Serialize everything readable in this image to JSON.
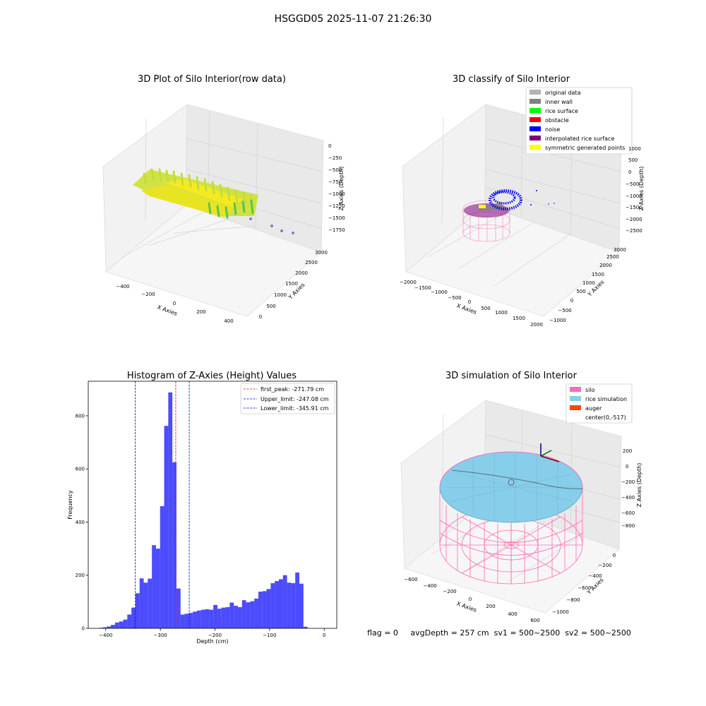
{
  "suptitle": "HSGGD05 2025-11-07 21:26:30",
  "status_line": "flag = 0     avgDepth = 257 cm  sv1 = 500~2500  sv2 = 500~2500",
  "chart_data": [
    {
      "id": "raw3d",
      "type": "scatter3d",
      "title": "3D Plot of Silo Interior(row data)",
      "xlabel": "X Axies",
      "ylabel": "Y Axies",
      "zlabel": "Z Axies (Depth)",
      "xticks": [
        "−400",
        "−200",
        "0",
        "200",
        "400"
      ],
      "yticks": [
        "0",
        "500",
        "1000",
        "1500",
        "2000",
        "2500",
        "3000"
      ],
      "zticks": [
        "0",
        "−250",
        "−500",
        "−750",
        "−1000",
        "−1250",
        "−1500",
        "−1750"
      ],
      "colors": {
        "high": "#f6e21c",
        "low": "#4ec24a",
        "outlier": "#7b7fc9"
      }
    },
    {
      "id": "classify3d",
      "type": "scatter3d",
      "title": "3D classify of Silo Interior",
      "xlabel": "X Axies",
      "ylabel": "Y Axies",
      "zlabel": "Z Axies (Depth)",
      "xticks": [
        "−2000",
        "−1500",
        "−1000",
        "−500",
        "0",
        "500",
        "1000",
        "1500",
        "2000"
      ],
      "yticks": [
        "−1000",
        "−500",
        "0",
        "500",
        "1000",
        "1500",
        "2000",
        "2500",
        "3000"
      ],
      "zticks": [
        "1000",
        "500",
        "0",
        "−500",
        "−1000",
        "−1500",
        "−2000",
        "−2500"
      ],
      "legend": [
        {
          "label": "original data",
          "color": "#b3b3b3"
        },
        {
          "label": "inner wall",
          "color": "#808080"
        },
        {
          "label": "rice surface",
          "color": "#00ff00"
        },
        {
          "label": "obstacle",
          "color": "#ff0000"
        },
        {
          "label": "noise",
          "color": "#0000ff"
        },
        {
          "label": "interpolated rice surface",
          "color": "#800080"
        },
        {
          "label": "symmetric generated points",
          "color": "#ffff00"
        }
      ],
      "legend_position": "top-right"
    },
    {
      "id": "hist",
      "type": "bar",
      "title": "Histogram of Z-Axies (Height) Values",
      "xlabel": "Depth (cm)",
      "ylabel": "Frequency",
      "xlim": [
        -432,
        23
      ],
      "ylim": [
        0,
        930
      ],
      "xticks": [
        -400,
        -300,
        -200,
        -100,
        0
      ],
      "yticks": [
        0,
        200,
        400,
        600,
        800
      ],
      "bin_start": -413,
      "bin_width": 7.5,
      "values": [
        2,
        4,
        7,
        13,
        22,
        26,
        33,
        52,
        78,
        132,
        188,
        172,
        187,
        313,
        300,
        460,
        762,
        888,
        625,
        150,
        52,
        55,
        58,
        63,
        67,
        70,
        72,
        70,
        88,
        74,
        78,
        80,
        97,
        85,
        80,
        106,
        98,
        102,
        112,
        138,
        140,
        148,
        170,
        178,
        185,
        200,
        172,
        170,
        210,
        168,
        6
      ],
      "bar_color": "#0000ff",
      "bar_opacity": 0.7,
      "lines": [
        {
          "label": "first_peak: -271.79 cm",
          "value": -271.79,
          "color": "#ff0000"
        },
        {
          "label": "Upper_limit: -247.08 cm",
          "value": -247.08,
          "color": "#0000ff"
        },
        {
          "label": "Lower_limit: -345.91 cm",
          "value": -345.91,
          "color": "#0000ff"
        }
      ],
      "legend_position": "top-right"
    },
    {
      "id": "sim3d",
      "type": "surface3d",
      "title": "3D simulation of Silo Interior",
      "xlabel": "X Axies",
      "ylabel": "Y Axies",
      "zlabel": "Z Axies (Depth)",
      "xticks": [
        "−600",
        "−400",
        "−200",
        "0",
        "200",
        "400",
        "600"
      ],
      "yticks": [
        "−1000",
        "−800",
        "−600",
        "−400",
        "−200",
        "0"
      ],
      "zticks": [
        "200",
        "0",
        "−200",
        "−400",
        "−600",
        "−800"
      ],
      "legend": [
        {
          "label": "silo",
          "color": "#ff69b4"
        },
        {
          "label": "rice simulation",
          "color": "#87ceeb"
        },
        {
          "label": "auger",
          "color": "#ff4500"
        },
        {
          "label": "center(0,-517)",
          "color": ""
        }
      ],
      "legend_position": "top-right"
    }
  ]
}
